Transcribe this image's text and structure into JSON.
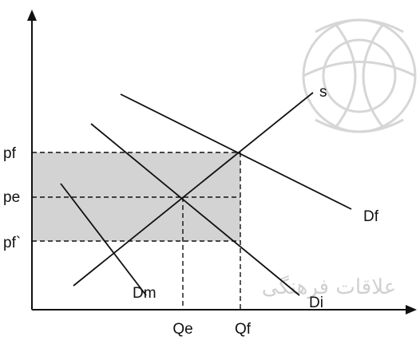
{
  "diagram": {
    "price_labels": {
      "pf": "pf",
      "pe": "pe",
      "pf_prime": "pf`"
    },
    "quantity_labels": {
      "qe": "Qe",
      "qf": "Qf"
    },
    "curve_labels": {
      "supply": "s",
      "foreign_demand": "Df",
      "domestic_demand": "Dm",
      "import_demand": "Di"
    },
    "colors": {
      "shaded_region": "#d3d3d3",
      "lines": "#111111",
      "watermark": "#d6d6d6"
    },
    "watermark_text": "علاقات فرهنگی"
  }
}
